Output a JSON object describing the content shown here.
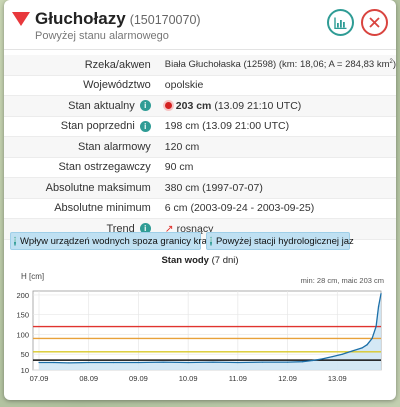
{
  "station": {
    "name": "Głuchołazy",
    "code": "(150170070)",
    "status_text": "Powyżej stanu alarmowego"
  },
  "header_buttons": {
    "chart_icon": "bar-chart-icon",
    "close_icon": "close-icon"
  },
  "colors": {
    "accent": "#2f9c95",
    "alarm": "#e0342f",
    "warning": "#e8840d",
    "tag_bg": "#bfe0f2"
  },
  "rows": [
    {
      "label": "Rzeka/akwen",
      "value": "Biała Głuchołaska (12598) (km: 18,06; A = 284,83 km",
      "sup": "2",
      "tail": ")"
    },
    {
      "label": "Województwo",
      "value": "opolskie"
    },
    {
      "label": "Stan aktualny",
      "value_bold": "203 cm",
      "value": "(13.09 21:10 UTC)"
    },
    {
      "label": "Stan poprzedni",
      "value": "198 cm (13.09 21:00 UTC)"
    },
    {
      "label": "Stan alarmowy",
      "value": "120 cm"
    },
    {
      "label": "Stan ostrzegawczy",
      "value": "90 cm"
    },
    {
      "label": "Absolutne maksimum",
      "value": "380 cm (1997-07-07)"
    },
    {
      "label": "Absolutne minimum",
      "value": "6 cm (2003-09-24 - 2003-09-25)"
    },
    {
      "label": "Trend",
      "value": "rosnący"
    }
  ],
  "info_badge": "i",
  "tags": [
    {
      "label": "Wpływ urządzeń wodnych spoza granicy kraju"
    },
    {
      "label": "Powyżej stacji hydrologicznej jaz"
    }
  ],
  "chart_data": {
    "type": "line",
    "title": "Stan wody",
    "subtitle": "(7 dni)",
    "ylabel": "H [cm]",
    "min_max_text": "min: 28 cm, maic 203 cm",
    "ylim": [
      10,
      210
    ],
    "yticks": [
      10,
      50,
      100,
      150,
      200
    ],
    "xticks": [
      "07.09",
      "08.09",
      "09.09",
      "10.09",
      "11.09",
      "12.09",
      "13.09"
    ],
    "x": [
      0,
      0.3,
      0.6,
      1.0,
      1.5,
      2.0,
      2.5,
      3.0,
      3.5,
      4.0,
      4.5,
      5.0,
      5.3,
      5.5,
      5.7,
      5.9,
      6.1,
      6.3,
      6.5,
      6.6,
      6.7,
      6.78,
      6.83,
      6.88
    ],
    "values": [
      29,
      29,
      28,
      29,
      29,
      29,
      30,
      29,
      30,
      29,
      30,
      30,
      31,
      34,
      38,
      44,
      50,
      58,
      66,
      74,
      90,
      120,
      170,
      203
    ],
    "thresholds": [
      {
        "value": 120,
        "color": "#e0342f"
      },
      {
        "value": 90,
        "color": "#e8a13a"
      },
      {
        "value": 56,
        "color": "#d8c82a"
      },
      {
        "value": 35,
        "color": "#111111"
      }
    ]
  }
}
